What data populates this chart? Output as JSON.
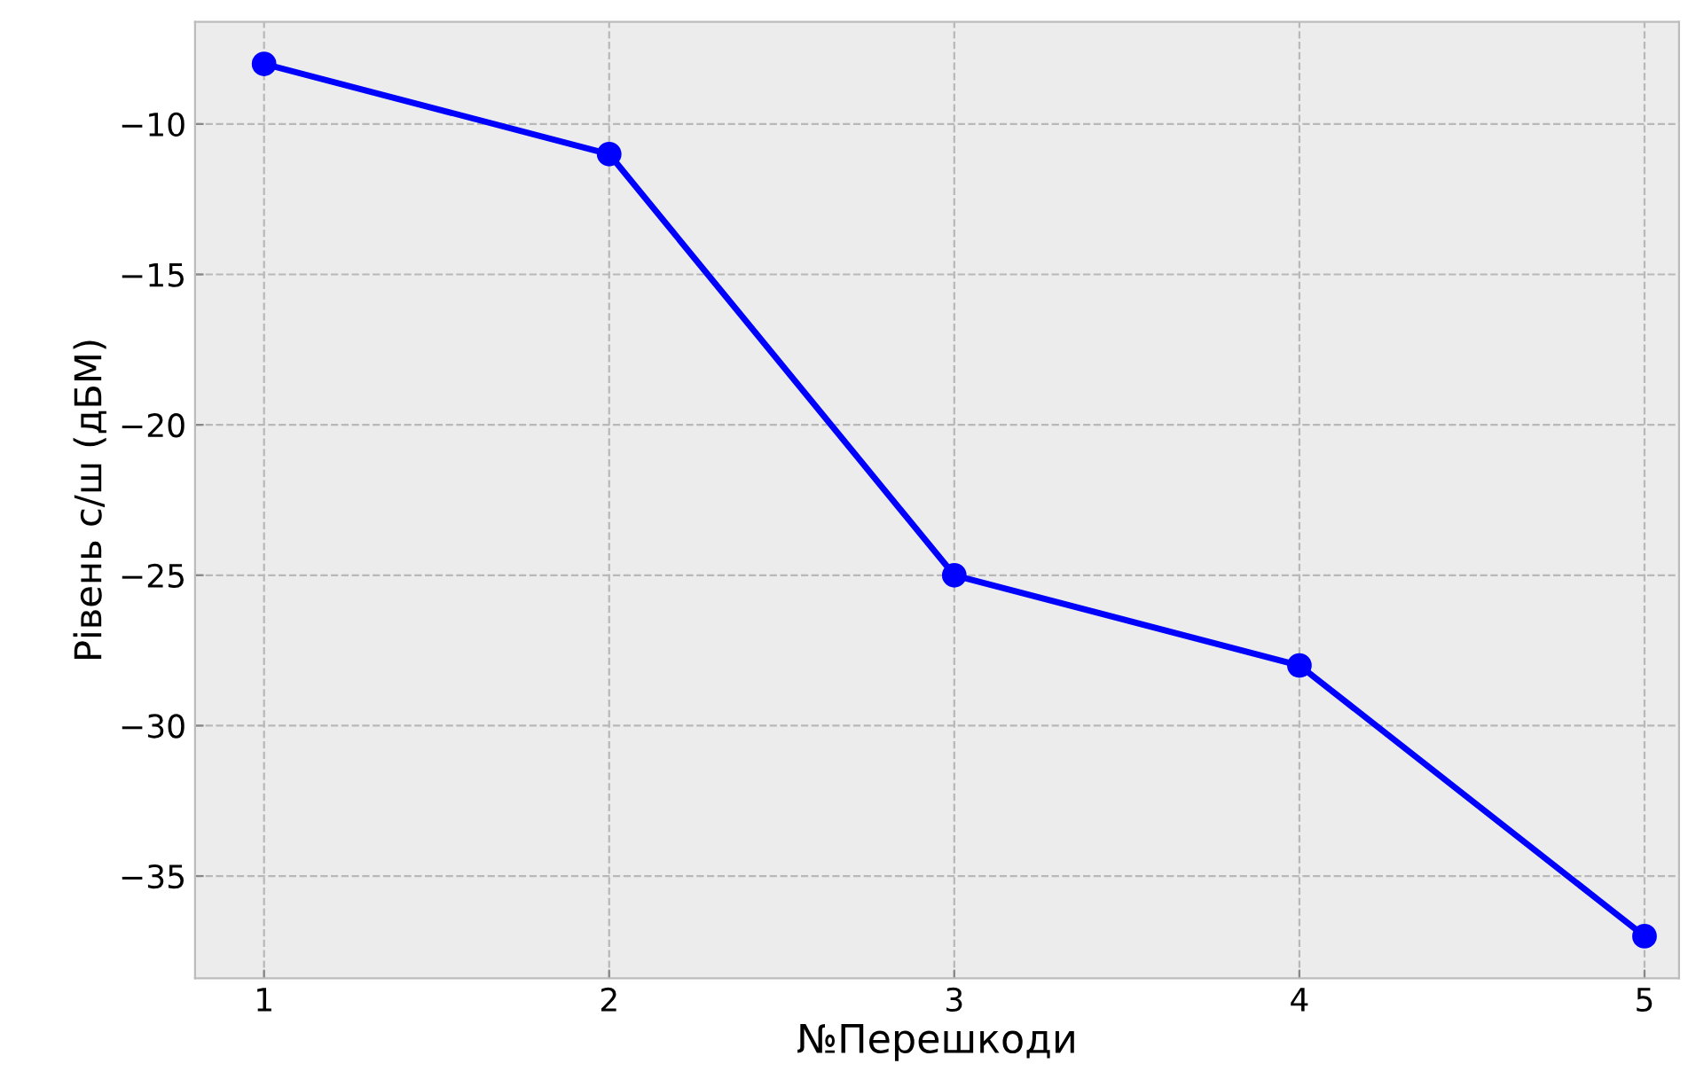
{
  "chart_data": {
    "type": "line",
    "xlabel": "№Перешкоди",
    "ylabel": "Рівень с/ш (дБМ)",
    "x": [
      1,
      2,
      3,
      4,
      5
    ],
    "series": [
      {
        "color": "#0000ff",
        "values": [
          -8,
          -11,
          -25,
          -28,
          -37
        ]
      }
    ],
    "xlim": [
      0.8,
      5.1
    ],
    "ylim": [
      -38.4,
      -6.6
    ],
    "xticks": [
      1,
      2,
      3,
      4,
      5
    ],
    "yticks": [
      {
        "value": -35,
        "label": "−35"
      },
      {
        "value": -30,
        "label": "−30"
      },
      {
        "value": -25,
        "label": "−25"
      },
      {
        "value": -20,
        "label": "−20"
      },
      {
        "value": -15,
        "label": "−15"
      },
      {
        "value": -10,
        "label": "−10"
      }
    ],
    "grid": true,
    "marker": "circle",
    "line_style": "solid"
  }
}
